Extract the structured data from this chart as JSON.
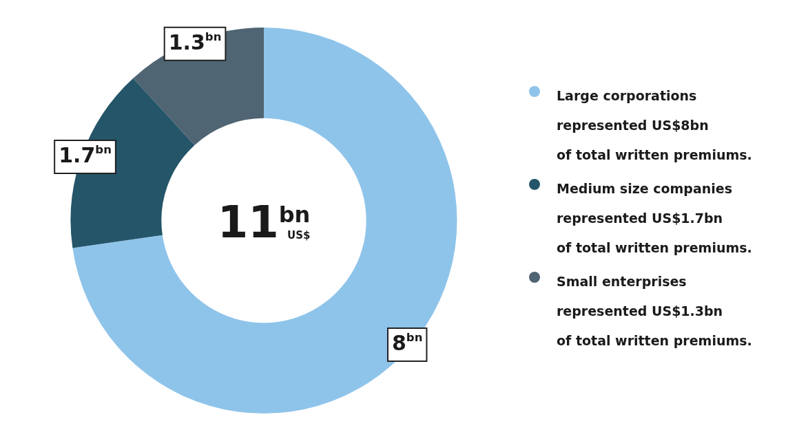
{
  "chart_data": {
    "type": "donut",
    "categories": [
      "Large corporations\nrepresented  US$8bn\nof total written premiums.",
      "Medium size companies\nrepresented US$1.7bn\nof total written premiums.",
      "Small enterprises\nrepresented US$1.3bn\nof total written premiums."
    ],
    "values": [
      8,
      1.7,
      1.3
    ],
    "colors": [
      "#8fc4ea",
      "#245568",
      "#4f6573"
    ],
    "value_labels": [
      "8$^{bn}$",
      "1.7$^{bn}$",
      "1.3$^{bn}$"
    ],
    "annotations": [
      "11$^{bn}$",
      "US$"
    ],
    "legend": "right"
  }
}
